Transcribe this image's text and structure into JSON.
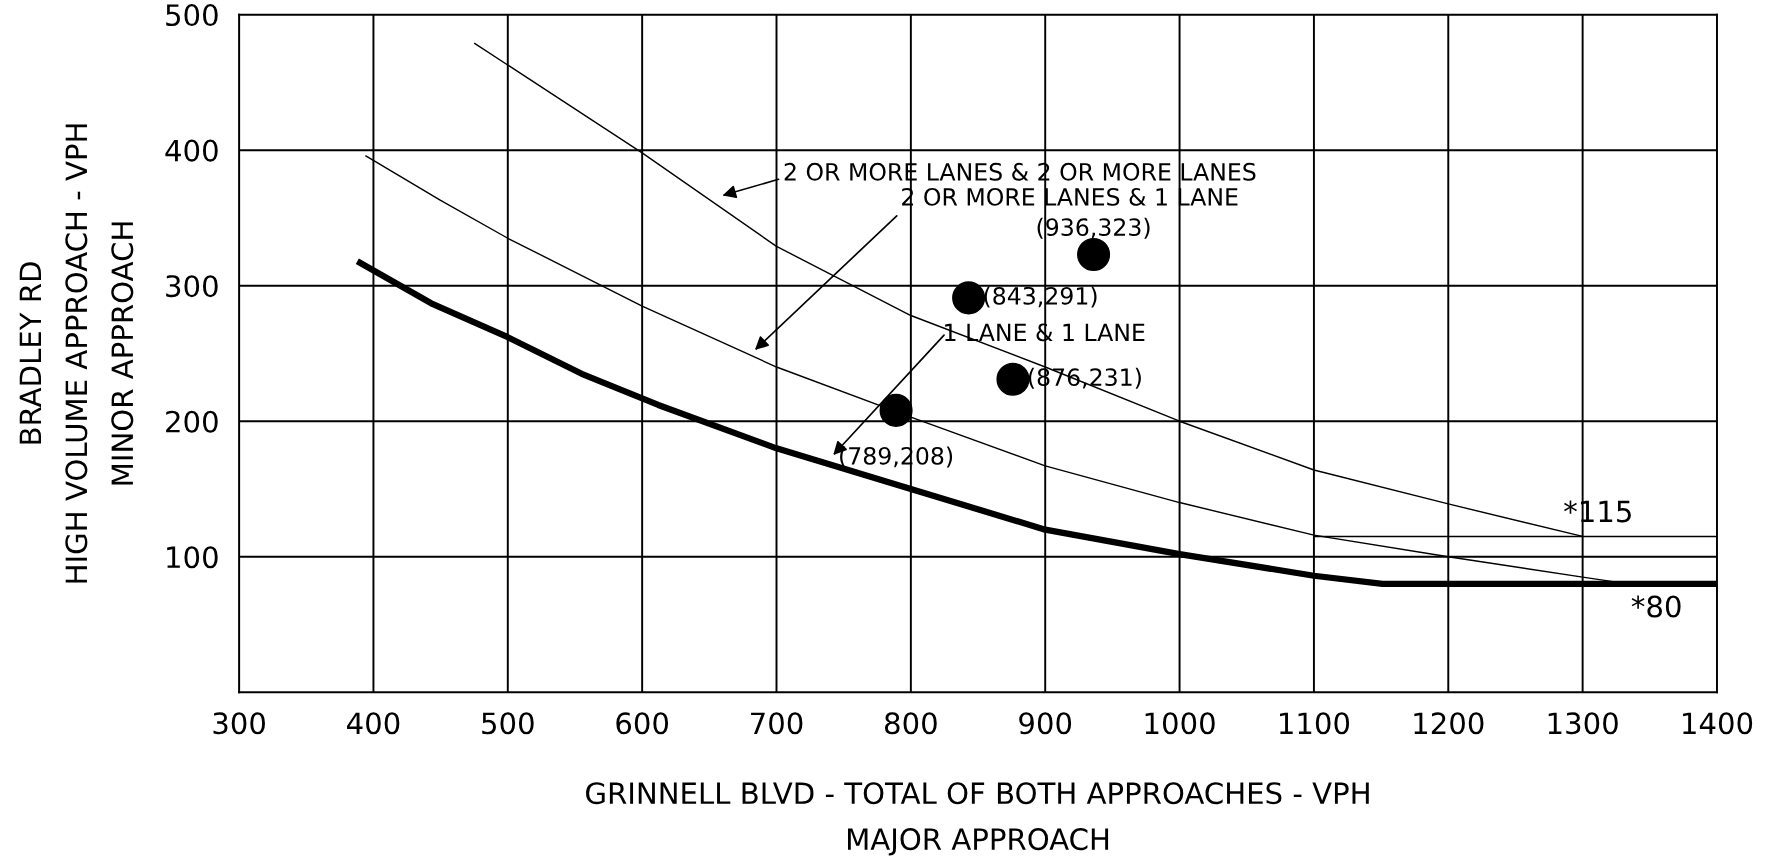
{
  "chart_data": {
    "type": "line",
    "xlabel": "GRINNELL BLVD - TOTAL OF BOTH APPROACHES - VPH\nMAJOR APPROACH",
    "ylabel": "BRADLEY RD\nHIGH VOLUME APPROACH - VPH\nMINOR APPROACH",
    "xlim": [
      300,
      1400
    ],
    "xticks": [
      300,
      400,
      500,
      600,
      700,
      800,
      900,
      1000,
      1100,
      1200,
      1300,
      1400
    ],
    "ylim": [
      0,
      500
    ],
    "yticks": [
      100,
      200,
      300,
      400,
      500
    ],
    "grid": true,
    "marker": "none",
    "line_style": "solid",
    "series": [
      {
        "color": "#000000",
        "x": [
          475,
          600,
          700,
          800,
          900,
          1000,
          1100,
          1200,
          1300
        ],
        "values": [
          479,
          398,
          329,
          278,
          240,
          200,
          164,
          139,
          115
        ]
      },
      {
        "color": "#000000",
        "x": [
          394,
          450,
          500,
          600,
          700,
          800,
          900,
          1000,
          1100,
          1200,
          1300,
          1334
        ],
        "values": [
          396,
          363,
          335,
          285,
          240,
          203,
          167,
          140,
          116,
          100,
          85,
          80
        ]
      },
      {
        "color": "#000000",
        "x": [
          388,
          443,
          500,
          555,
          612,
          700,
          800,
          900,
          1000,
          1100,
          1151,
          1400
        ],
        "values": [
          318,
          287,
          262,
          235,
          212,
          180,
          150,
          120,
          102,
          86,
          80,
          80
        ]
      },
      {
        "color": "#000000",
        "x": [
          1100,
          1400
        ],
        "values": [
          115,
          115
        ]
      },
      {
        "type": "scatter",
        "color": "#000000",
        "marker": "circle",
        "x": [
          789,
          843,
          876,
          936
        ],
        "values": [
          208,
          291,
          231,
          323
        ]
      }
    ],
    "annotations": [
      "2 OR MORE LANES & 2 OR MORE LANES",
      "2 OR MORE LANES & 1 LANE",
      "1 LANE & 1 LANE",
      {
        "text": "(789,208)",
        "x": 789,
        "y": 208
      },
      {
        "text": "(843,291)",
        "x": 843,
        "y": 291
      },
      {
        "text": "(876,231)",
        "x": 876,
        "y": 231
      },
      {
        "text": "(936,323)",
        "x": 936,
        "y": 323
      },
      {
        "text": "*115",
        "x": 1300,
        "y": 115
      },
      {
        "text": "*80",
        "x": 1340,
        "y": 80
      }
    ]
  }
}
